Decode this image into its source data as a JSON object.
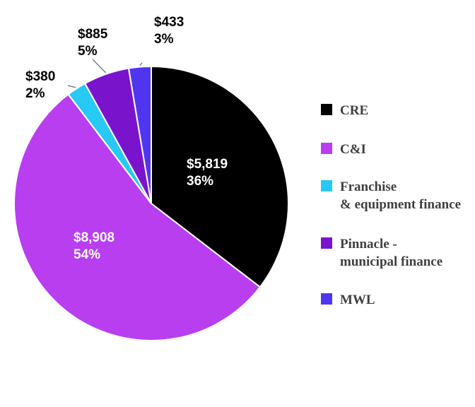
{
  "chart_data": {
    "type": "pie",
    "title": "",
    "legend_position": "right",
    "slices": [
      {
        "name": "CRE",
        "legend_lines": [
          "CRE"
        ],
        "value": 5819,
        "value_label": "$5,819",
        "pct_label": "36%",
        "color": "#000000",
        "label_color": "#ffffff"
      },
      {
        "name": "C&I",
        "legend_lines": [
          "C&I"
        ],
        "value": 8908,
        "value_label": "$8,908",
        "pct_label": "54%",
        "color": "#b93ef0",
        "label_color": "#ffffff"
      },
      {
        "name": "Franchise & equipment finance",
        "legend_lines": [
          "Franchise",
          "& equipment finance"
        ],
        "value": 380,
        "value_label": "$380",
        "pct_label": "2%",
        "color": "#27c9f5",
        "label_color": "#000000"
      },
      {
        "name": "Pinnacle - municipal finance",
        "legend_lines": [
          "Pinnacle -",
          "municipal finance"
        ],
        "value": 885,
        "value_label": "$885",
        "pct_label": "5%",
        "color": "#7a14cc",
        "label_color": "#000000"
      },
      {
        "name": "MWL",
        "legend_lines": [
          "MWL"
        ],
        "value": 433,
        "value_label": "$433",
        "pct_label": "3%",
        "color": "#5035f0",
        "label_color": "#000000"
      }
    ]
  }
}
